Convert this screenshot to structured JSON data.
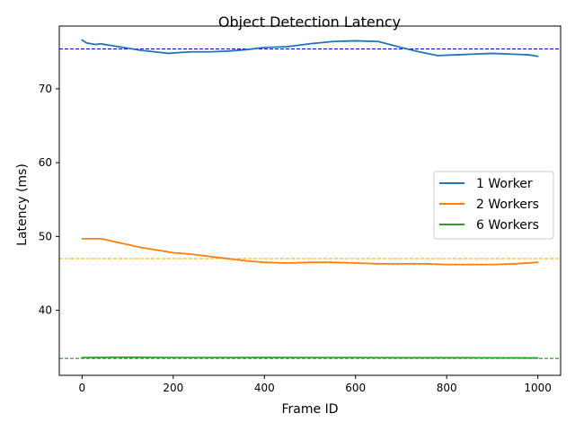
{
  "chart_data": {
    "type": "line",
    "title": "Object Detection Latency",
    "xlabel": "Frame ID",
    "ylabel": "Latency (ms)",
    "xlim": [
      -50,
      1050
    ],
    "ylim": [
      31.2,
      78.5
    ],
    "xticks": [
      0,
      200,
      400,
      600,
      800,
      1000
    ],
    "yticks": [
      40,
      50,
      60,
      70
    ],
    "legend_position": "center-right",
    "grid": false,
    "series": [
      {
        "name": "1 Worker",
        "color": "#1f77b4",
        "x": [
          0,
          10,
          20,
          30,
          40,
          50,
          60,
          80,
          100,
          130,
          160,
          190,
          210,
          240,
          280,
          320,
          360,
          400,
          450,
          500,
          550,
          600,
          650,
          700,
          740,
          780,
          820,
          860,
          900,
          940,
          980,
          1000
        ],
        "values": [
          76.6,
          76.2,
          76.1,
          76.0,
          76.1,
          76.0,
          75.9,
          75.7,
          75.5,
          75.2,
          75.0,
          74.8,
          74.9,
          75.0,
          75.0,
          75.1,
          75.3,
          75.6,
          75.7,
          76.1,
          76.4,
          76.5,
          76.4,
          75.6,
          75.0,
          74.5,
          74.6,
          74.7,
          74.8,
          74.7,
          74.6,
          74.4
        ],
        "mean": 75.4,
        "mean_color": "#0000cc"
      },
      {
        "name": "2 Workers",
        "color": "#ff7f0e",
        "x": [
          0,
          20,
          40,
          50,
          70,
          100,
          130,
          160,
          200,
          240,
          280,
          320,
          360,
          400,
          450,
          500,
          550,
          600,
          650,
          700,
          750,
          800,
          850,
          900,
          950,
          1000
        ],
        "values": [
          49.7,
          49.7,
          49.7,
          49.6,
          49.3,
          48.9,
          48.5,
          48.2,
          47.8,
          47.6,
          47.3,
          47.0,
          46.7,
          46.5,
          46.4,
          46.5,
          46.5,
          46.4,
          46.3,
          46.3,
          46.3,
          46.2,
          46.2,
          46.2,
          46.3,
          46.5
        ],
        "mean": 47.0,
        "mean_color": "#ffa500"
      },
      {
        "name": "6 Workers",
        "color": "#2ca02c",
        "x": [
          0,
          100,
          200,
          300,
          400,
          500,
          600,
          700,
          800,
          900,
          1000
        ],
        "values": [
          33.6,
          33.65,
          33.6,
          33.6,
          33.62,
          33.6,
          33.6,
          33.58,
          33.58,
          33.57,
          33.55
        ],
        "mean": 33.5,
        "mean_color": "#008000"
      }
    ]
  }
}
